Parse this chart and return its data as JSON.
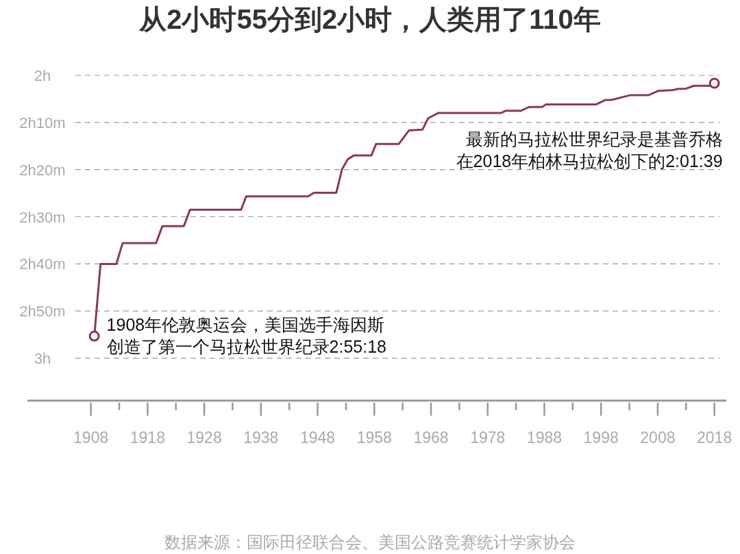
{
  "chart_data": {
    "type": "line",
    "title": "从2小时55分到2小时，人类用了110年",
    "series": [
      {
        "color": "#8b3a52",
        "x": [
          1908.6,
          1909.7,
          1912.5,
          1913.6,
          1919.5,
          1920.6,
          1924.4,
          1925.5,
          1934.5,
          1935.4,
          1946.3,
          1947.4,
          1951.3,
          1952.3,
          1953.3,
          1954.4,
          1957.5,
          1958.3,
          1962.3,
          1964.1,
          1966.5,
          1967.5,
          1969.3,
          1980.4,
          1981.2,
          1983.9,
          1985.3,
          1987.6,
          1988.3,
          1997.1,
          1998.8,
          1999.8,
          2003.2,
          2006.4,
          2008.1,
          2010.7,
          2011.6,
          2013.0,
          2014.4,
          2017.4,
          2018.0
        ],
        "values": [
          2.922,
          2.667,
          2.667,
          2.593,
          2.593,
          2.533,
          2.533,
          2.475,
          2.475,
          2.428,
          2.428,
          2.415,
          2.415,
          2.332,
          2.297,
          2.283,
          2.283,
          2.243,
          2.243,
          2.195,
          2.192,
          2.152,
          2.133,
          2.133,
          2.125,
          2.125,
          2.112,
          2.112,
          2.103,
          2.103,
          2.087,
          2.087,
          2.07,
          2.07,
          2.055,
          2.052,
          2.048,
          2.047,
          2.037,
          2.037,
          2.028
        ]
      },
      {
        "type": "scatter",
        "marker": "circle",
        "color": "#8b3a52",
        "x": [
          1908.6,
          2018.0
        ],
        "values": [
          2.922,
          2.028
        ]
      }
    ],
    "xlim": [
      1896.8,
      2020.1
    ],
    "xticks": [
      1908,
      {
        "value": 1913,
        "label": null
      },
      1918,
      {
        "value": 1923,
        "label": null
      },
      1928,
      {
        "value": 1933,
        "label": null
      },
      1938,
      {
        "value": 1943,
        "label": null
      },
      1948,
      {
        "value": 1953,
        "label": null
      },
      1958,
      {
        "value": 1963,
        "label": null
      },
      1968,
      {
        "value": 1973,
        "label": null
      },
      1978,
      {
        "value": 1983,
        "label": null
      },
      1988,
      {
        "value": 1993,
        "label": null
      },
      1998,
      {
        "value": 2003,
        "label": null
      },
      2008,
      {
        "value": 2013,
        "label": null
      },
      2018
    ],
    "ylim": [
      3.15,
      2
    ],
    "yticks": [
      {
        "value": 2,
        "label": "2h"
      },
      {
        "value": 2.1667,
        "label": "2h10m"
      },
      {
        "value": 2.3333,
        "label": "2h20m"
      },
      {
        "value": 2.5,
        "label": "2h30m"
      },
      {
        "value": 2.6667,
        "label": "2h40m"
      },
      {
        "value": 2.8333,
        "label": "2h50m"
      },
      {
        "value": 3,
        "label": "3h"
      }
    ],
    "grid": "y",
    "line_style": "solid",
    "annotations": [
      {
        "text": "1908年伦敦奥运会，美国选手海因斯创造了第一个马拉松世界纪录2:55:18",
        "x": 1908.6,
        "y": 2.922
      },
      {
        "text": "最新的马拉松世界纪录是基普乔格在2018年柏林马拉松创下的2:01:39",
        "x": 2018.0,
        "y": 2.028
      },
      "数据来源：国际田径联合会、美国公路竞赛统计学家协会"
    ]
  }
}
